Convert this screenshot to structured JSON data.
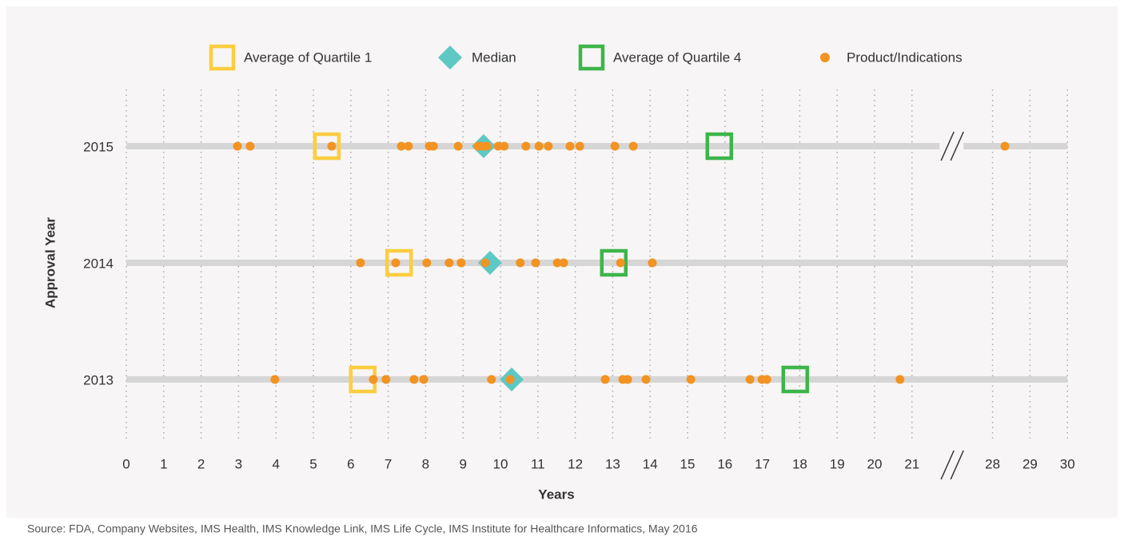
{
  "chart_data": {
    "type": "strip",
    "xlabel": "Years",
    "ylabel": "Approval Year",
    "source": "Source: FDA, Company Websites, IMS Health, IMS Knowledge Link, IMS Life Cycle, IMS Institute for Healthcare Informatics, May 2016",
    "categories": [
      "2015",
      "2014",
      "2013"
    ],
    "xlim": [
      0,
      30
    ],
    "xticks": [
      0,
      1,
      2,
      3,
      4,
      5,
      6,
      7,
      8,
      9,
      10,
      11,
      12,
      13,
      14,
      15,
      16,
      17,
      18,
      19,
      20,
      21,
      28,
      29,
      30
    ],
    "axis_break": [
      21.5,
      27.5
    ],
    "grid": true,
    "series": [
      {
        "name": "Average of Quartile 1",
        "color": "#fdcd3f",
        "marker": "square",
        "values": [
          5.36,
          7.29,
          6.32
        ]
      },
      {
        "name": "Median",
        "color": "#5ec8c4",
        "marker": "diamond",
        "values": [
          9.55,
          9.72,
          10.3
        ]
      },
      {
        "name": "Average of Quartile 4",
        "color": "#3db54a",
        "marker": "square",
        "values": [
          15.85,
          13.03,
          17.88
        ]
      },
      {
        "name": "Product/Indications",
        "color": "#f39322",
        "marker": "dot",
        "values": [
          [
            2.97,
            3.31,
            5.49,
            7.35,
            7.54,
            8.1,
            8.21,
            8.87,
            9.4,
            9.51,
            9.64,
            9.94,
            10.1,
            10.68,
            11.03,
            11.28,
            11.86,
            12.12,
            13.06,
            13.55,
            28.33
          ],
          [
            6.26,
            7.2,
            8.03,
            8.63,
            8.95,
            9.59,
            10.53,
            10.94,
            11.52,
            11.69,
            13.21,
            14.06
          ],
          [
            3.97,
            6.6,
            6.94,
            7.69,
            7.95,
            9.76,
            10.26,
            12.8,
            13.27,
            13.4,
            13.89,
            15.09,
            16.67,
            16.99,
            17.12,
            20.68
          ]
        ]
      }
    ]
  }
}
